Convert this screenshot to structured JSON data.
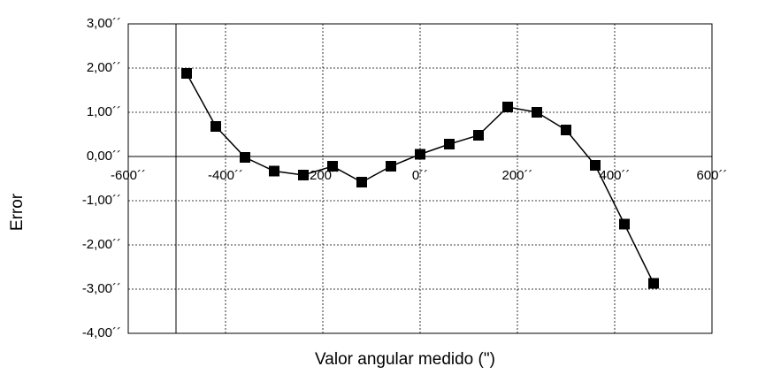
{
  "chart_data": {
    "type": "line",
    "x_label": "Valor angular medido (\")",
    "y_label": "Error",
    "x": [
      -480,
      -420,
      -360,
      -300,
      -240,
      -180,
      -120,
      -60,
      0,
      60,
      120,
      180,
      240,
      300,
      360,
      420,
      480
    ],
    "series": [
      {
        "color": "#000000",
        "values": [
          1.88,
          0.68,
          -0.02,
          -0.33,
          -0.42,
          -0.22,
          -0.58,
          -0.22,
          0.05,
          0.28,
          0.48,
          1.12,
          1.0,
          0.6,
          -0.2,
          -1.53,
          -2.87
        ]
      }
    ],
    "xlim": [
      -600,
      600
    ],
    "xticks": [
      {
        "value": -600,
        "label": "-600´´"
      },
      {
        "value": -400,
        "label": "-400´´"
      },
      {
        "value": -200,
        "label": "-200´´"
      },
      {
        "value": 0,
        "label": "0´´"
      },
      {
        "value": 200,
        "label": "200´´"
      },
      {
        "value": 400,
        "label": "400´´"
      },
      {
        "value": 600,
        "label": "600´´"
      }
    ],
    "ylim": [
      -4,
      3
    ],
    "yticks": [
      {
        "value": -4,
        "label": "-4,00´´"
      },
      {
        "value": -3,
        "label": "-3,00´´"
      },
      {
        "value": -2,
        "label": "-2,00´´"
      },
      {
        "value": -1,
        "label": "-1,00´´"
      },
      {
        "value": 0,
        "label": "0,00´´"
      },
      {
        "value": 1,
        "label": "1,00´´"
      },
      {
        "value": 2,
        "label": "2,00´´"
      },
      {
        "value": 3,
        "label": "3,00´´"
      }
    ],
    "grid": true
  }
}
